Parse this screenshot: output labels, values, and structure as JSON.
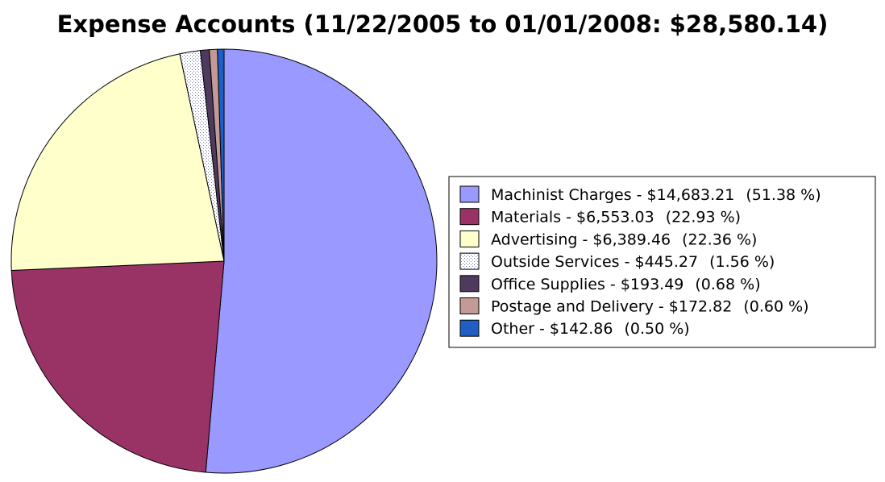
{
  "chart_data": {
    "type": "pie",
    "title": "Expense Accounts (11/22/2005 to 01/01/2008: $28,580.14)",
    "legend_position": "right",
    "slices": [
      {
        "label": "Machinist Charges",
        "amount": "$14,683.21",
        "percent": "(51.38 %)",
        "value": 14683.21,
        "color": "#9999ff",
        "pattern": "solid"
      },
      {
        "label": "Materials",
        "amount": "$6,553.03",
        "percent": "(22.93 %)",
        "value": 6553.03,
        "color": "#993366",
        "pattern": "solid"
      },
      {
        "label": "Advertising",
        "amount": "$6,389.46",
        "percent": "(22.36 %)",
        "value": 6389.46,
        "color": "#ffffcc",
        "pattern": "solid"
      },
      {
        "label": "Outside Services",
        "amount": "$445.27",
        "percent": "(1.56 %)",
        "value": 445.27,
        "color": "#ffffff",
        "pattern": "dotted"
      },
      {
        "label": "Office Supplies",
        "amount": "$193.49",
        "percent": "(0.68 %)",
        "value": 193.49,
        "color": "#4d3a5c",
        "pattern": "solid"
      },
      {
        "label": "Postage and Delivery",
        "amount": "$172.82",
        "percent": "(0.60 %)",
        "value": 172.82,
        "color": "#c49a96",
        "pattern": "solid"
      },
      {
        "label": "Other",
        "amount": "$142.86",
        "percent": "(0.50 %)",
        "value": 142.86,
        "color": "#1f5fc4",
        "pattern": "solid"
      }
    ]
  }
}
